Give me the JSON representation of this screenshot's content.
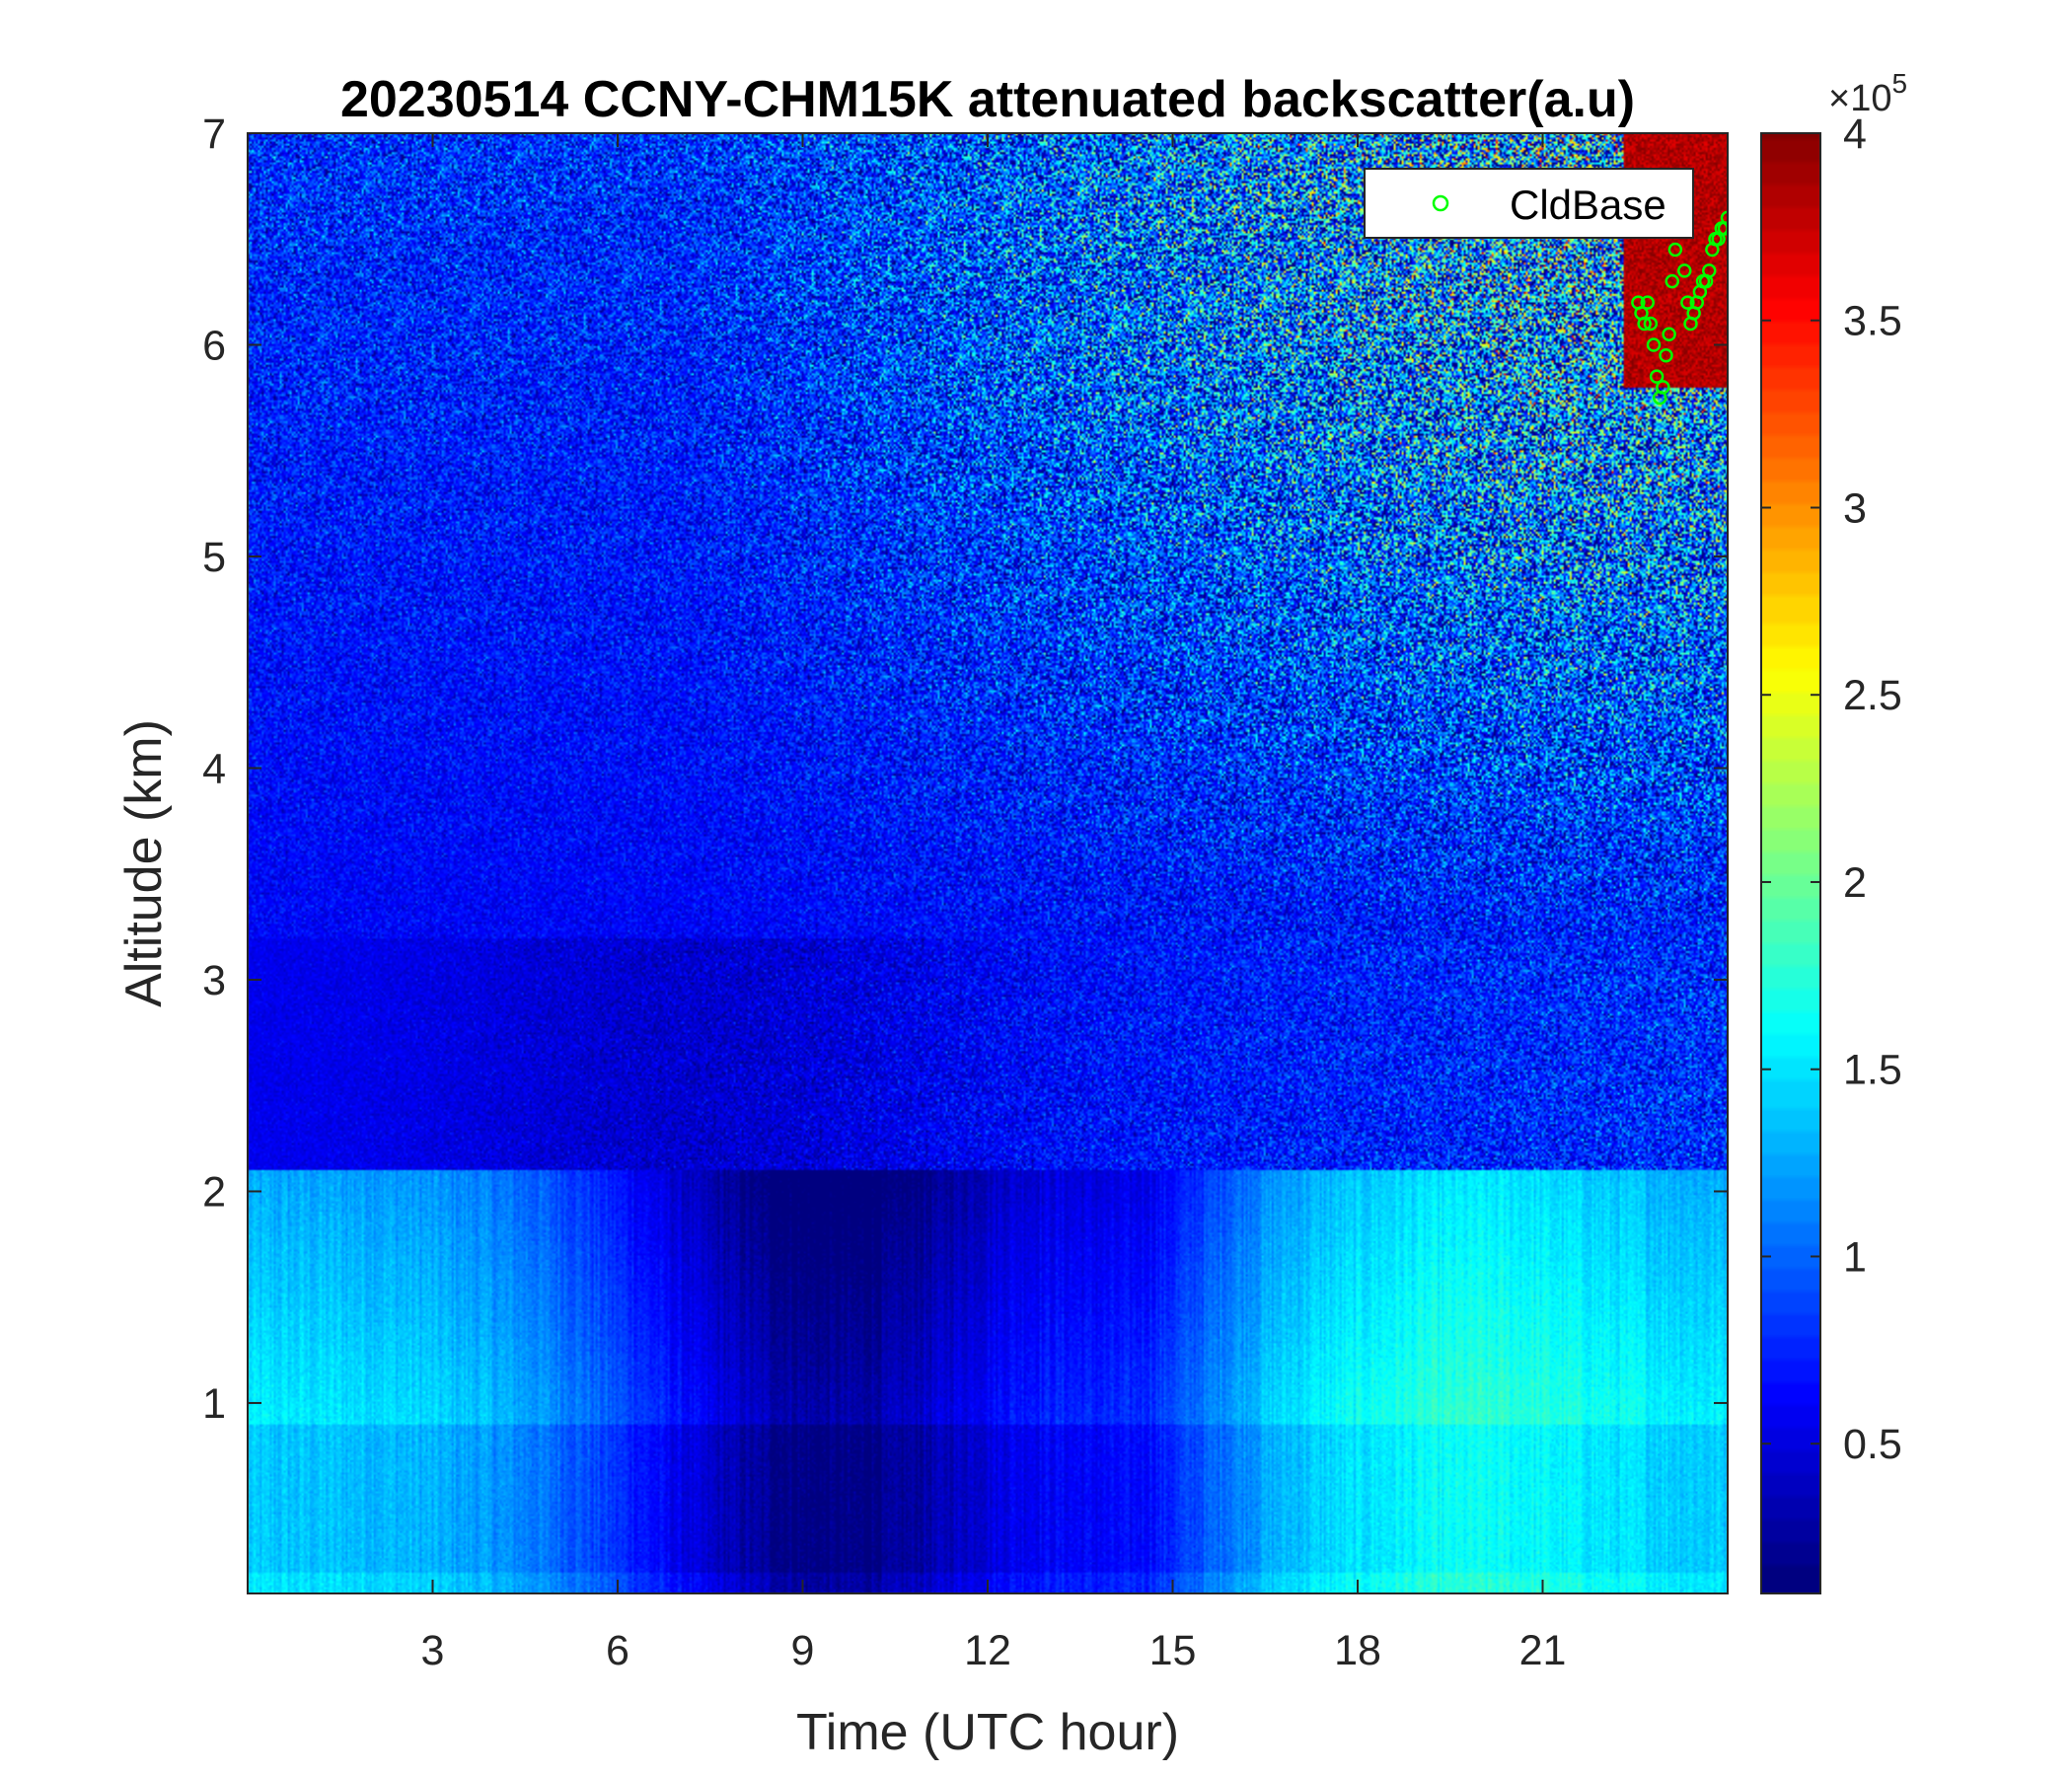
{
  "chart_data": {
    "type": "heatmap",
    "title": "20230514 CCNY-CHM15K attenuated backscatter(a.u)",
    "xlabel": "Time (UTC hour)",
    "ylabel": "Altitude (km)",
    "xlim": [
      0,
      24
    ],
    "ylim": [
      0.1,
      7
    ],
    "xticks": [
      "3",
      "6",
      "9",
      "12",
      "15",
      "18",
      "21"
    ],
    "xtick_values": [
      3,
      6,
      9,
      12,
      15,
      18,
      21
    ],
    "yticks": [
      "1",
      "2",
      "3",
      "4",
      "5",
      "6",
      "7"
    ],
    "ytick_values": [
      1,
      2,
      3,
      4,
      5,
      6,
      7
    ],
    "colorbar": {
      "colormap": "jet",
      "clim": [
        0.1,
        4
      ],
      "exponent_label": "×10",
      "exponent_power": "5",
      "ticks": [
        "0.5",
        "1",
        "1.5",
        "2",
        "2.5",
        "3",
        "3.5",
        "4"
      ],
      "tick_values": [
        0.5,
        1,
        1.5,
        2,
        2.5,
        3,
        3.5,
        4
      ]
    },
    "legend": {
      "entries": [
        "CldBase"
      ],
      "placement": "top-right",
      "marker": "circle",
      "color": "#00ff00"
    },
    "series": [
      {
        "name": "CldBase",
        "marker": "circle",
        "color": "#00ff00",
        "points": [
          [
            22.55,
            6.2
          ],
          [
            22.6,
            6.15
          ],
          [
            22.65,
            6.1
          ],
          [
            22.7,
            6.2
          ],
          [
            22.75,
            6.1
          ],
          [
            22.8,
            6.0
          ],
          [
            22.85,
            5.85
          ],
          [
            22.9,
            5.75
          ],
          [
            22.95,
            5.8
          ],
          [
            23.0,
            5.95
          ],
          [
            23.05,
            6.05
          ],
          [
            23.1,
            6.3
          ],
          [
            23.15,
            6.45
          ],
          [
            23.2,
            6.55
          ],
          [
            23.25,
            6.6
          ],
          [
            23.3,
            6.35
          ],
          [
            23.35,
            6.2
          ],
          [
            23.4,
            6.1
          ],
          [
            23.45,
            6.15
          ],
          [
            23.5,
            6.2
          ],
          [
            23.55,
            6.25
          ],
          [
            23.6,
            6.3
          ],
          [
            23.65,
            6.3
          ],
          [
            23.7,
            6.35
          ],
          [
            23.75,
            6.45
          ],
          [
            23.8,
            6.5
          ],
          [
            23.85,
            6.5
          ],
          [
            23.9,
            6.55
          ],
          [
            23.95,
            6.55
          ],
          [
            24.0,
            6.6
          ]
        ]
      }
    ]
  }
}
